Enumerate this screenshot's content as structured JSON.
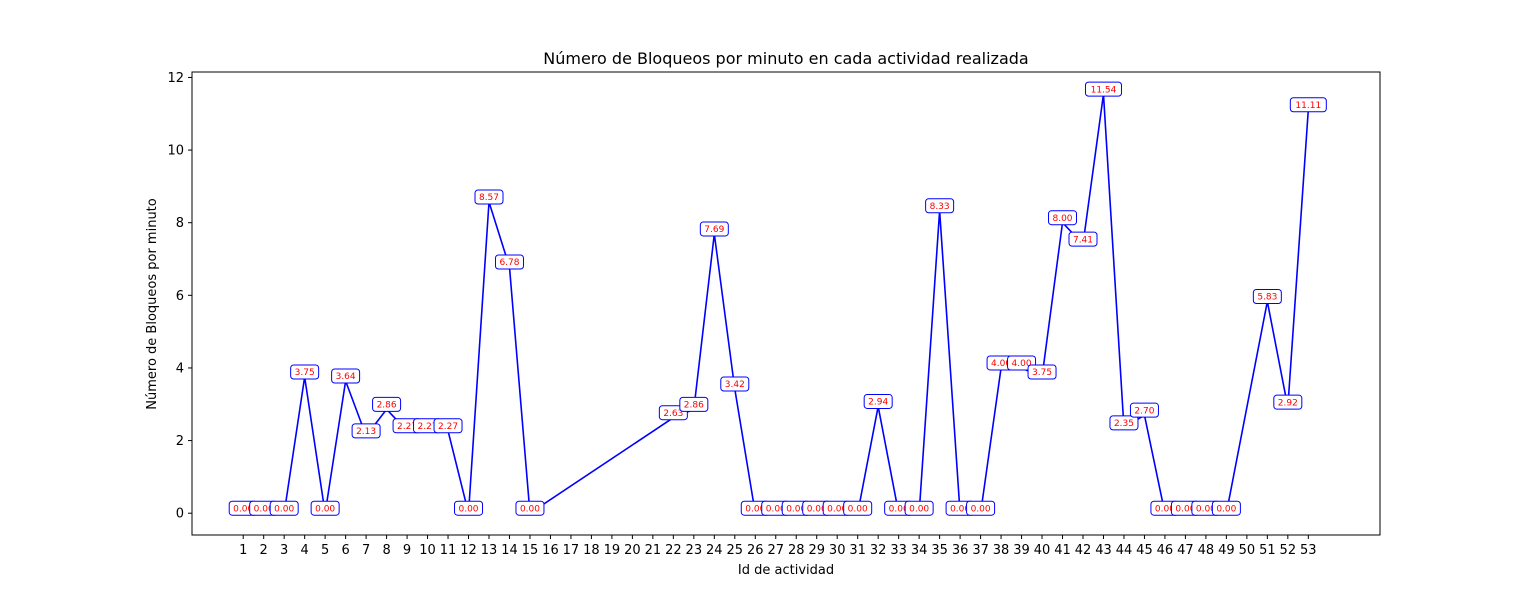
{
  "chart_data": {
    "type": "line",
    "title": "Número de Bloqueos por minuto en cada actividad realizada",
    "xlabel": "Id de actividad",
    "ylabel": "Número de Bloqueos por minuto",
    "categories": [
      "1",
      "2",
      "3",
      "4",
      "5",
      "6",
      "7",
      "8",
      "9",
      "10",
      "11",
      "12",
      "13",
      "14",
      "15",
      "16",
      "17",
      "18",
      "19",
      "20",
      "21",
      "22",
      "23",
      "24",
      "25",
      "26",
      "27",
      "28",
      "29",
      "30",
      "31",
      "32",
      "33",
      "34",
      "35",
      "36",
      "37",
      "38",
      "39",
      "40",
      "41",
      "42",
      "43",
      "44",
      "45",
      "46",
      "47",
      "48",
      "49",
      "50",
      "51",
      "52",
      "53"
    ],
    "points": [
      {
        "x": 1,
        "y": 0.0,
        "label": "0.00"
      },
      {
        "x": 2,
        "y": 0.0,
        "label": "0.00"
      },
      {
        "x": 3,
        "y": 0.0,
        "label": "0.00"
      },
      {
        "x": 4,
        "y": 3.75,
        "label": "3.75"
      },
      {
        "x": 5,
        "y": 0.0,
        "label": "0.00"
      },
      {
        "x": 6,
        "y": 3.64,
        "label": "3.64"
      },
      {
        "x": 7,
        "y": 2.13,
        "label": "2.13"
      },
      {
        "x": 8,
        "y": 2.86,
        "label": "2.86"
      },
      {
        "x": 9,
        "y": 2.27,
        "label": "2.27"
      },
      {
        "x": 10,
        "y": 2.27,
        "label": "2.27"
      },
      {
        "x": 11,
        "y": 2.27,
        "label": "2.27"
      },
      {
        "x": 12,
        "y": 0.0,
        "label": "0.00"
      },
      {
        "x": 13,
        "y": 8.57,
        "label": "8.57"
      },
      {
        "x": 14,
        "y": 6.78,
        "label": "6.78"
      },
      {
        "x": 15,
        "y": 0.0,
        "label": "0.00"
      },
      {
        "x": 22,
        "y": 2.63,
        "label": "2.63"
      },
      {
        "x": 23,
        "y": 2.86,
        "label": "2.86"
      },
      {
        "x": 24,
        "y": 7.69,
        "label": "7.69"
      },
      {
        "x": 25,
        "y": 3.42,
        "label": "3.42"
      },
      {
        "x": 26,
        "y": 0.0,
        "label": "0.00"
      },
      {
        "x": 27,
        "y": 0.0,
        "label": "0.00"
      },
      {
        "x": 28,
        "y": 0.0,
        "label": "0.00"
      },
      {
        "x": 29,
        "y": 0.0,
        "label": "0.00"
      },
      {
        "x": 30,
        "y": 0.0,
        "label": "0.00"
      },
      {
        "x": 31,
        "y": 0.0,
        "label": "0.00"
      },
      {
        "x": 32,
        "y": 2.94,
        "label": "2.94"
      },
      {
        "x": 33,
        "y": 0.0,
        "label": "0.00"
      },
      {
        "x": 34,
        "y": 0.0,
        "label": "0.00"
      },
      {
        "x": 35,
        "y": 8.33,
        "label": "8.33"
      },
      {
        "x": 36,
        "y": 0.0,
        "label": "0.00"
      },
      {
        "x": 37,
        "y": 0.0,
        "label": "0.00"
      },
      {
        "x": 38,
        "y": 4.0,
        "label": "4.00"
      },
      {
        "x": 39,
        "y": 4.0,
        "label": "4.00"
      },
      {
        "x": 40,
        "y": 3.75,
        "label": "3.75"
      },
      {
        "x": 41,
        "y": 8.0,
        "label": "8.00"
      },
      {
        "x": 42,
        "y": 7.41,
        "label": "7.41"
      },
      {
        "x": 43,
        "y": 11.54,
        "label": "11.54"
      },
      {
        "x": 44,
        "y": 2.35,
        "label": "2.35"
      },
      {
        "x": 45,
        "y": 2.7,
        "label": "2.70"
      },
      {
        "x": 46,
        "y": 0.0,
        "label": "0.00"
      },
      {
        "x": 47,
        "y": 0.0,
        "label": "0.00"
      },
      {
        "x": 48,
        "y": 0.0,
        "label": "0.00"
      },
      {
        "x": 49,
        "y": 0.0,
        "label": "0.00"
      },
      {
        "x": 51,
        "y": 5.83,
        "label": "5.83"
      },
      {
        "x": 52,
        "y": 2.92,
        "label": "2.92"
      },
      {
        "x": 53,
        "y": 11.11,
        "label": "11.11"
      }
    ],
    "yticks": [
      0,
      2,
      4,
      6,
      8,
      10,
      12
    ],
    "xlim": [
      -1.5,
      56.5
    ],
    "ylim": [
      -0.6,
      12.15
    ],
    "grid": false,
    "legend": "none",
    "colors": {
      "line": "#0000ff",
      "label_text": "#ff0000",
      "label_border": "#0000ff"
    }
  }
}
